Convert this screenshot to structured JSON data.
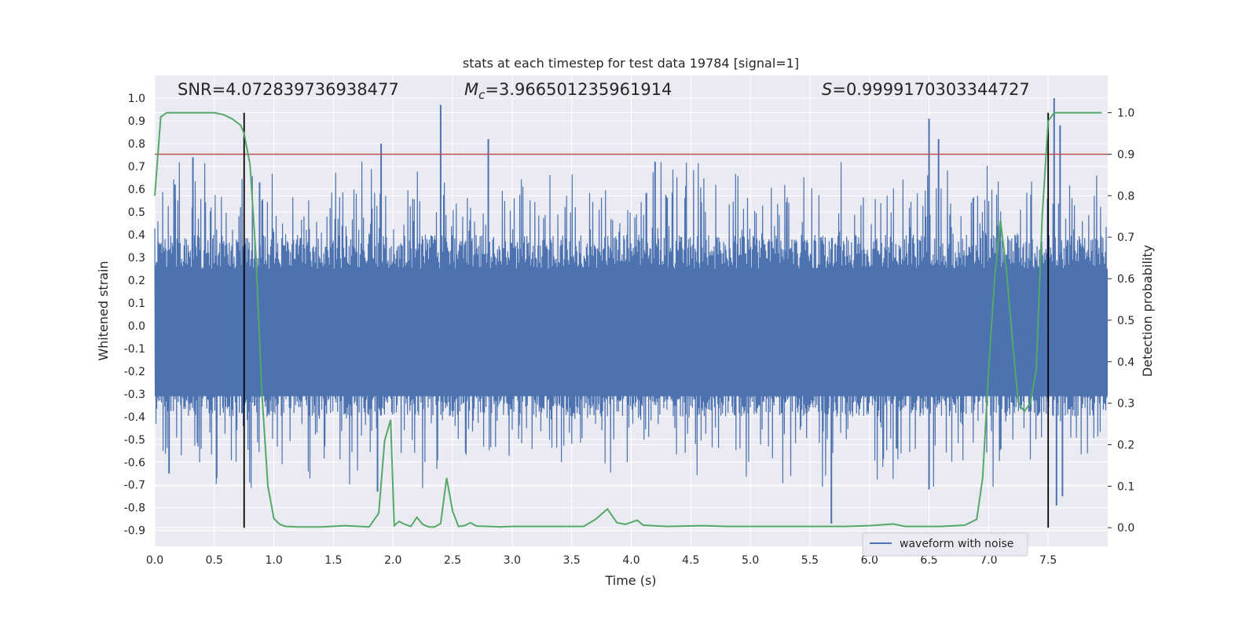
{
  "chart_data": {
    "type": "line",
    "title": "stats at each timestep for test data 19784 [signal=1]",
    "xlabel": "Time (s)",
    "ylabel": "Whitened strain",
    "ylabel_right": "Detection probability",
    "xlim": [
      0.0,
      8.0
    ],
    "ylim": [
      -0.97,
      1.1
    ],
    "ylim_right": [
      -0.045,
      1.09
    ],
    "xticks": [
      "0.0",
      "0.5",
      "1.0",
      "1.5",
      "2.0",
      "2.5",
      "3.0",
      "3.5",
      "4.0",
      "4.5",
      "5.0",
      "5.5",
      "6.0",
      "6.5",
      "7.0",
      "7.5"
    ],
    "yticks": [
      "1.0",
      "0.9",
      "0.8",
      "0.7",
      "0.6",
      "0.5",
      "0.4",
      "0.3",
      "0.2",
      "0.1",
      "0.0",
      "-0.1",
      "-0.2",
      "-0.3",
      "-0.4",
      "-0.5",
      "-0.6",
      "-0.7",
      "-0.8",
      "-0.9"
    ],
    "yticks_right": [
      "1.0",
      "0.9",
      "0.8",
      "0.7",
      "0.6",
      "0.5",
      "0.4",
      "0.3",
      "0.2",
      "0.1",
      "0.0"
    ],
    "annotations": {
      "snr": "SNR=4.072839736938477",
      "mc_prefix": "M",
      "mc_sub": "c",
      "mc_value": "=3.966501235961914",
      "s_prefix": "S",
      "s_value": "=0.9999170303344727"
    },
    "threshold_right": 0.9,
    "event_lines_x": [
      0.75,
      7.5
    ],
    "legend": {
      "label": "waveform with noise",
      "placement": "lower-right"
    },
    "grid": true,
    "colors": {
      "background": "#eaeaf2",
      "waveform": "#4c72b0",
      "probability": "#55a868",
      "threshold": "#c44e52",
      "event_lines": "#000000"
    },
    "series": [
      {
        "name": "waveform with noise",
        "axis": "left",
        "envelope_peaks": [
          [
            0.17,
            0.62
          ],
          [
            0.32,
            0.74
          ],
          [
            0.88,
            0.63
          ],
          [
            1.9,
            0.8
          ],
          [
            2.4,
            0.97
          ],
          [
            2.8,
            0.82
          ],
          [
            4.2,
            0.72
          ],
          [
            6.5,
            0.91
          ],
          [
            6.58,
            0.82
          ],
          [
            7.55,
            1.0
          ],
          [
            7.6,
            0.88
          ],
          [
            5.68,
            -0.87
          ],
          [
            7.57,
            -0.79
          ],
          [
            7.62,
            -0.75
          ],
          [
            6.5,
            -0.72
          ],
          [
            1.87,
            -0.73
          ],
          [
            0.12,
            -0.65
          ],
          [
            0.52,
            -0.67
          ]
        ]
      },
      {
        "axis": "right",
        "x": [
          0.0,
          0.05,
          0.1,
          0.15,
          0.2,
          0.3,
          0.4,
          0.5,
          0.58,
          0.65,
          0.72,
          0.75,
          0.8,
          0.85,
          0.9,
          0.95,
          1.0,
          1.05,
          1.1,
          1.2,
          1.4,
          1.6,
          1.8,
          1.88,
          1.93,
          1.98,
          2.01,
          2.05,
          2.1,
          2.15,
          2.2,
          2.25,
          2.3,
          2.35,
          2.4,
          2.45,
          2.5,
          2.55,
          2.6,
          2.65,
          2.7,
          2.8,
          2.9,
          3.0,
          3.2,
          3.4,
          3.6,
          3.7,
          3.8,
          3.88,
          3.95,
          4.05,
          4.1,
          4.3,
          4.6,
          4.8,
          5.0,
          5.4,
          5.8,
          6.0,
          6.2,
          6.3,
          6.6,
          6.8,
          6.9,
          6.95,
          7.0,
          7.05,
          7.1,
          7.15,
          7.2,
          7.25,
          7.3,
          7.35,
          7.4,
          7.45,
          7.5,
          7.55,
          7.6,
          7.7,
          7.8,
          7.95
        ],
        "values": [
          0.8,
          0.99,
          1.0,
          1.0,
          1.0,
          1.0,
          1.0,
          1.0,
          0.995,
          0.985,
          0.97,
          0.95,
          0.875,
          0.65,
          0.32,
          0.1,
          0.022,
          0.008,
          0.003,
          0.002,
          0.002,
          0.005,
          0.002,
          0.035,
          0.21,
          0.26,
          0.005,
          0.015,
          0.008,
          0.003,
          0.025,
          0.008,
          0.002,
          0.002,
          0.01,
          0.12,
          0.04,
          0.003,
          0.005,
          0.012,
          0.004,
          0.003,
          0.002,
          0.003,
          0.003,
          0.003,
          0.003,
          0.02,
          0.045,
          0.012,
          0.008,
          0.018,
          0.006,
          0.003,
          0.005,
          0.003,
          0.003,
          0.003,
          0.003,
          0.005,
          0.009,
          0.003,
          0.003,
          0.006,
          0.02,
          0.12,
          0.38,
          0.6,
          0.74,
          0.62,
          0.45,
          0.3,
          0.28,
          0.3,
          0.38,
          0.75,
          0.98,
          1.0,
          1.0,
          1.0,
          1.0,
          1.0
        ]
      }
    ]
  }
}
